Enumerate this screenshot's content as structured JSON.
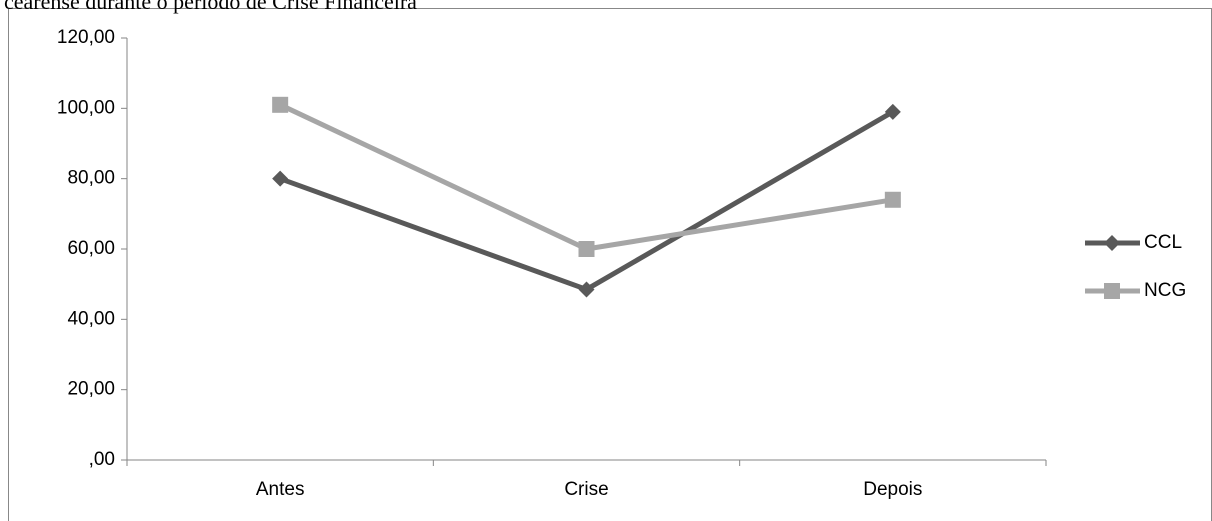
{
  "caption": "cearense durante o período de Crise Financeira",
  "chart_data": {
    "type": "line",
    "categories": [
      "Antes",
      "Crise",
      "Depois"
    ],
    "series": [
      {
        "name": "CCL",
        "color": "#595959",
        "marker": "diamond",
        "values": [
          80,
          48.5,
          99
        ]
      },
      {
        "name": "NCG",
        "color": "#a6a6a6",
        "marker": "square",
        "values": [
          101,
          60,
          74
        ]
      }
    ],
    "ylim": [
      0,
      120
    ],
    "yticks": [
      {
        "value": 0,
        "label": ",00"
      },
      {
        "value": 20,
        "label": "20,00"
      },
      {
        "value": 40,
        "label": "40,00"
      },
      {
        "value": 60,
        "label": "60,00"
      },
      {
        "value": 80,
        "label": "80,00"
      },
      {
        "value": 100,
        "label": "100,00"
      },
      {
        "value": 120,
        "label": "120,00"
      }
    ],
    "legend": "right"
  }
}
